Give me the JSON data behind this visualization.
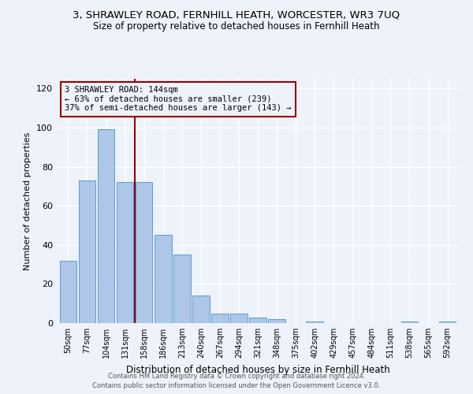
{
  "title_line1": "3, SHRAWLEY ROAD, FERNHILL HEATH, WORCESTER, WR3 7UQ",
  "title_line2": "Size of property relative to detached houses in Fernhill Heath",
  "xlabel": "Distribution of detached houses by size in Fernhill Heath",
  "ylabel": "Number of detached properties",
  "bar_labels": [
    "50sqm",
    "77sqm",
    "104sqm",
    "131sqm",
    "158sqm",
    "186sqm",
    "213sqm",
    "240sqm",
    "267sqm",
    "294sqm",
    "321sqm",
    "348sqm",
    "375sqm",
    "402sqm",
    "429sqm",
    "457sqm",
    "484sqm",
    "511sqm",
    "538sqm",
    "565sqm",
    "592sqm"
  ],
  "bar_values": [
    32,
    73,
    99,
    72,
    72,
    45,
    35,
    14,
    5,
    5,
    3,
    2,
    0,
    1,
    0,
    0,
    0,
    0,
    1,
    0,
    1
  ],
  "bar_color": "#aec6e8",
  "bar_edgecolor": "#5a9fd4",
  "vline_x_index": 3,
  "vline_color": "#990000",
  "annotation_text": "3 SHRAWLEY ROAD: 144sqm\n← 63% of detached houses are smaller (239)\n37% of semi-detached houses are larger (143) →",
  "annotation_box_edgecolor": "#990000",
  "ylim": [
    0,
    125
  ],
  "yticks": [
    0,
    20,
    40,
    60,
    80,
    100,
    120
  ],
  "footer_line1": "Contains HM Land Registry data © Crown copyright and database right 2024.",
  "footer_line2": "Contains public sector information licensed under the Open Government Licence v3.0.",
  "background_color": "#eef2fb",
  "grid_color": "#ffffff",
  "title_fontsize": 9.5,
  "subtitle_fontsize": 8.5,
  "bar_width": 0.9
}
